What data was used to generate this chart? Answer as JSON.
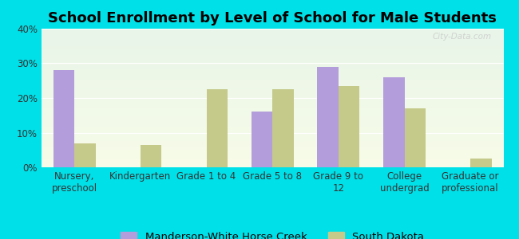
{
  "title": "School Enrollment by Level of School for Male Students",
  "categories": [
    "Nursery,\npreschool",
    "Kindergarten",
    "Grade 1 to 4",
    "Grade 5 to 8",
    "Grade 9 to\n12",
    "College\nundergrad",
    "Graduate or\nprofessional"
  ],
  "manderson_values": [
    28.0,
    0.0,
    0.0,
    16.0,
    29.0,
    26.0,
    0.0
  ],
  "southdakota_values": [
    7.0,
    6.5,
    22.5,
    22.5,
    23.5,
    17.0,
    2.5
  ],
  "manderson_color": "#b39ddb",
  "southdakota_color": "#c5c98a",
  "background_color": "#00e0e8",
  "plot_bg_top": "#e8f5e9",
  "plot_bg_bottom": "#f8fce8",
  "ylim": [
    0,
    40
  ],
  "yticks": [
    0,
    10,
    20,
    30,
    40
  ],
  "ytick_labels": [
    "0%",
    "10%",
    "20%",
    "30%",
    "40%"
  ],
  "legend_manderson": "Manderson-White Horse Creek",
  "legend_southdakota": "South Dakota",
  "title_fontsize": 13,
  "tick_fontsize": 8.5,
  "legend_fontsize": 9.5,
  "bar_width": 0.32
}
